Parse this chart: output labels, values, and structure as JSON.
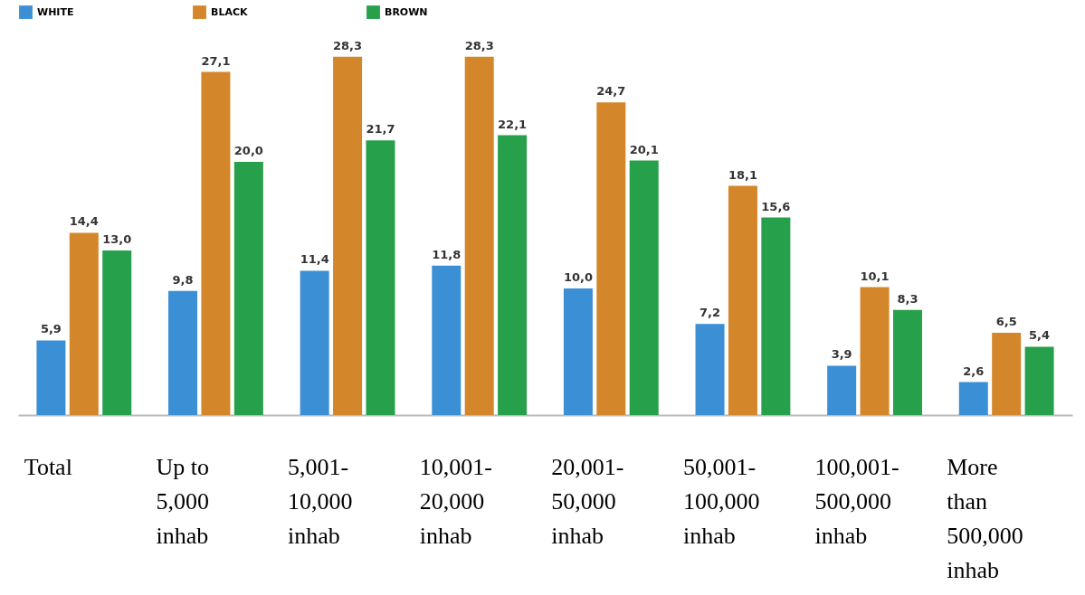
{
  "chart_data": {
    "type": "bar",
    "categories": [
      "Total",
      "Up to\n5,000\ninhab",
      "5,001-\n10,000\ninhab",
      "10,001-\n20,000\ninhab",
      "20,001-\n50,000\ninhab",
      "50,001-\n100,000\ninhab",
      "100,001-\n500,000\ninhab",
      "More\nthan\n500,000\ninhab"
    ],
    "series": [
      {
        "name": "WHITE",
        "color": "#3b8fd4",
        "values": [
          5.9,
          9.8,
          11.4,
          11.8,
          10.0,
          7.2,
          3.9,
          2.6
        ],
        "value_labels": [
          "5,9",
          "9,8",
          "11,4",
          "11,8",
          "10,0",
          "7,2",
          "3,9",
          "2,6"
        ]
      },
      {
        "name": "BLACK",
        "color": "#d4862a",
        "values": [
          14.4,
          27.1,
          28.3,
          28.3,
          24.7,
          18.1,
          10.1,
          6.5
        ],
        "value_labels": [
          "14,4",
          "27,1",
          "28,3",
          "28,3",
          "24,7",
          "18,1",
          "10,1",
          "6,5"
        ]
      },
      {
        "name": "BROWN",
        "color": "#26a04a",
        "values": [
          13.0,
          20.0,
          21.7,
          22.1,
          20.1,
          15.6,
          8.3,
          5.4
        ],
        "value_labels": [
          "13,0",
          "20,0",
          "21,7",
          "22,1",
          "20,1",
          "15,6",
          "8,3",
          "5,4"
        ]
      }
    ],
    "legend": "top",
    "grid": false
  }
}
